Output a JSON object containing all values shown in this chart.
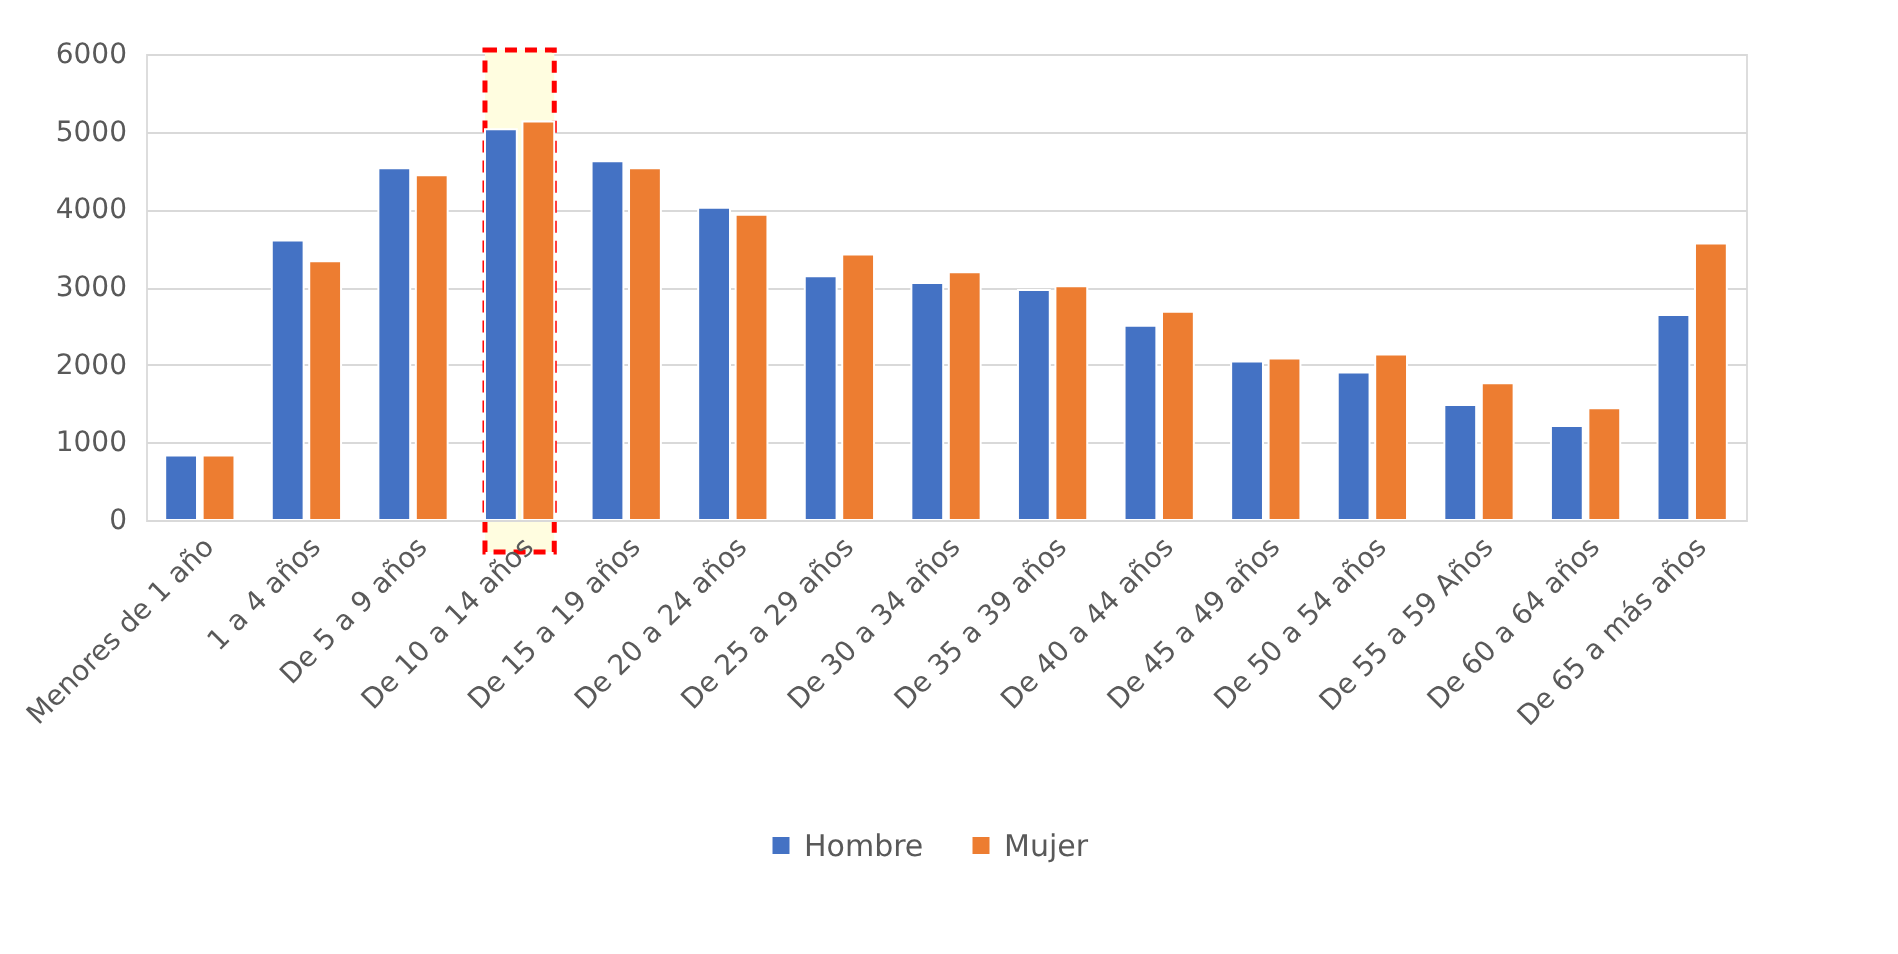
{
  "chart_data": {
    "type": "bar",
    "categories": [
      "Menores de 1 año",
      "1 a 4 años",
      "De 5 a 9 años",
      "De 10 a 14 años",
      "De 15 a 19 años",
      "De 20 a 24 años",
      "De 25 a 29 años",
      "De 30 a 34 años",
      "De 35 a 39 años",
      "De 40 a 44 años",
      "De 45 a 49 años",
      "De 50 a 54 años",
      "De 55 a 59 Años",
      "De 60 a 64 años",
      "De 65 a más años"
    ],
    "series": [
      {
        "name": "Hombre",
        "color": "#4472c4",
        "values": [
          830,
          3600,
          4530,
          5030,
          4620,
          4020,
          3140,
          3050,
          2960,
          2500,
          2040,
          1900,
          1480,
          1210,
          2640
        ]
      },
      {
        "name": "Mujer",
        "color": "#ed7d31",
        "values": [
          830,
          3330,
          4440,
          5130,
          4530,
          3930,
          3420,
          3190,
          3010,
          2680,
          2080,
          2130,
          1760,
          1440,
          3560
        ]
      }
    ],
    "ylim": [
      0,
      6000
    ],
    "yticks": [
      0,
      1000,
      2000,
      3000,
      4000,
      5000,
      6000
    ],
    "grid": "y",
    "legend": "bottom",
    "bands": [
      {
        "axis": "x",
        "from": "De 10 a 14 años",
        "to": "De 10 a 14 años",
        "color": "#fffde0"
      }
    ]
  }
}
